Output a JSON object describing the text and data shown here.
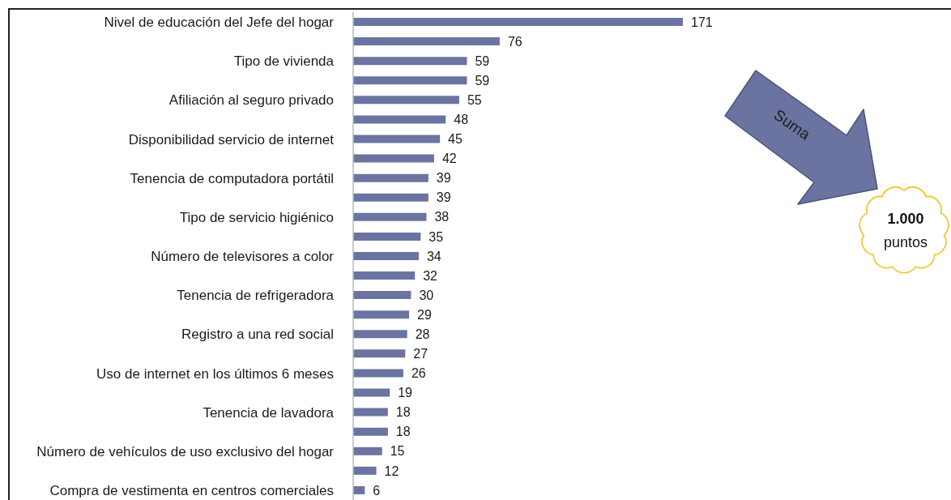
{
  "chart_data": {
    "type": "bar",
    "orientation": "horizontal",
    "categories": [
      "Nivel de educación del Jefe del hogar",
      null,
      "Tipo de vivienda",
      null,
      "Afiliación al seguro privado",
      null,
      "Disponibilidad servicio de internet",
      null,
      "Tenencia de computadora portátil",
      null,
      "Tipo de servicio higiénico",
      null,
      "Número de televisores a color",
      null,
      "Tenencia de refrigeradora",
      null,
      "Registro a una red social",
      null,
      "Uso de internet en los últimos 6 meses",
      null,
      "Tenencia de lavadora",
      null,
      "Número de vehículos de uso exclusivo del hogar",
      null,
      "Compra de vestimenta en centros comerciales"
    ],
    "values": [
      171,
      76,
      59,
      59,
      55,
      48,
      45,
      42,
      39,
      39,
      38,
      35,
      34,
      32,
      30,
      29,
      28,
      27,
      26,
      19,
      18,
      18,
      15,
      12,
      6
    ],
    "color": "#6b74a0",
    "data_labels": true,
    "annotations": [
      "Suma",
      "1.000 puntos"
    ]
  }
}
